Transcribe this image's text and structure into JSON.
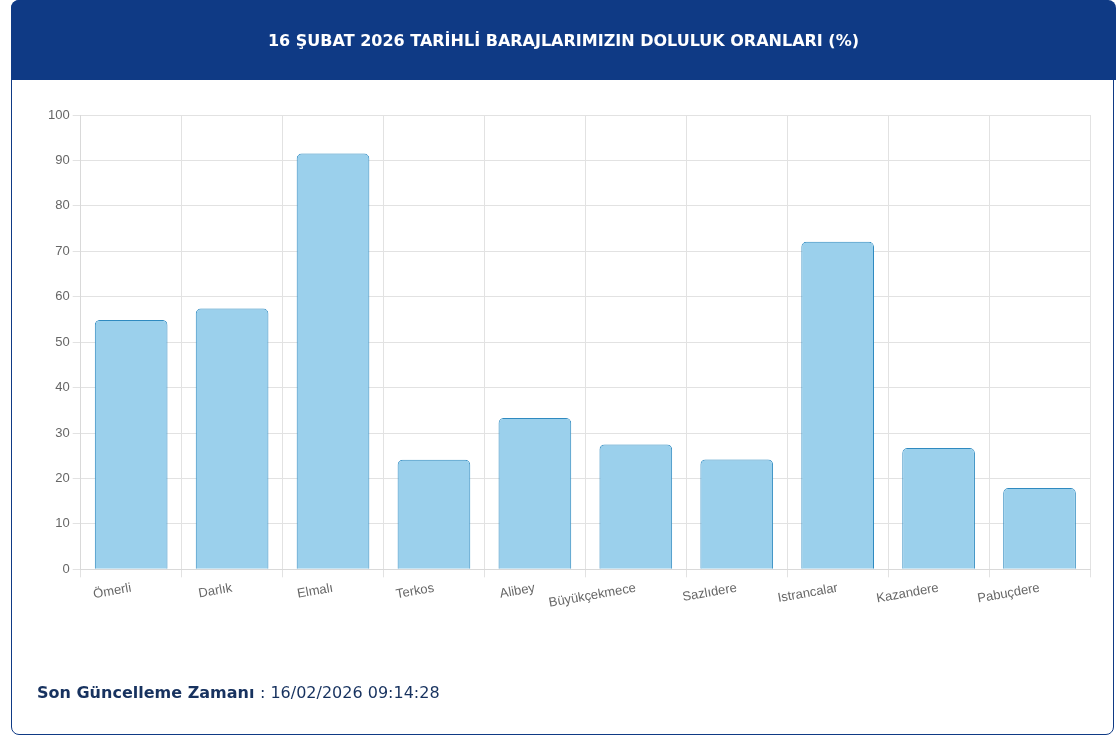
{
  "chart_data": {
    "type": "bar",
    "title": "16 ŞUBAT 2026 TARİHLİ BARAJLARIMIZIN DOLULUK ORANLARI (%)",
    "categories": [
      "Ömerli",
      "Darlık",
      "Elmalı",
      "Terkos",
      "Alibey",
      "Büyükçekmece",
      "Sazlıdere",
      "Istrancalar",
      "Kazandere",
      "Pabuçdere"
    ],
    "values": [
      54.9,
      57.4,
      91.5,
      24.1,
      33.3,
      27.5,
      24.2,
      72.1,
      26.7,
      17.9
    ],
    "color": "#9bd0ec",
    "ylim": [
      0,
      100
    ],
    "yticks": [
      0,
      10,
      20,
      30,
      40,
      50,
      60,
      70,
      80,
      90,
      100
    ],
    "grid": true,
    "annotations": [
      "Son Güncelleme Zamanı : 16/02/2026 09:14:28"
    ]
  }
}
